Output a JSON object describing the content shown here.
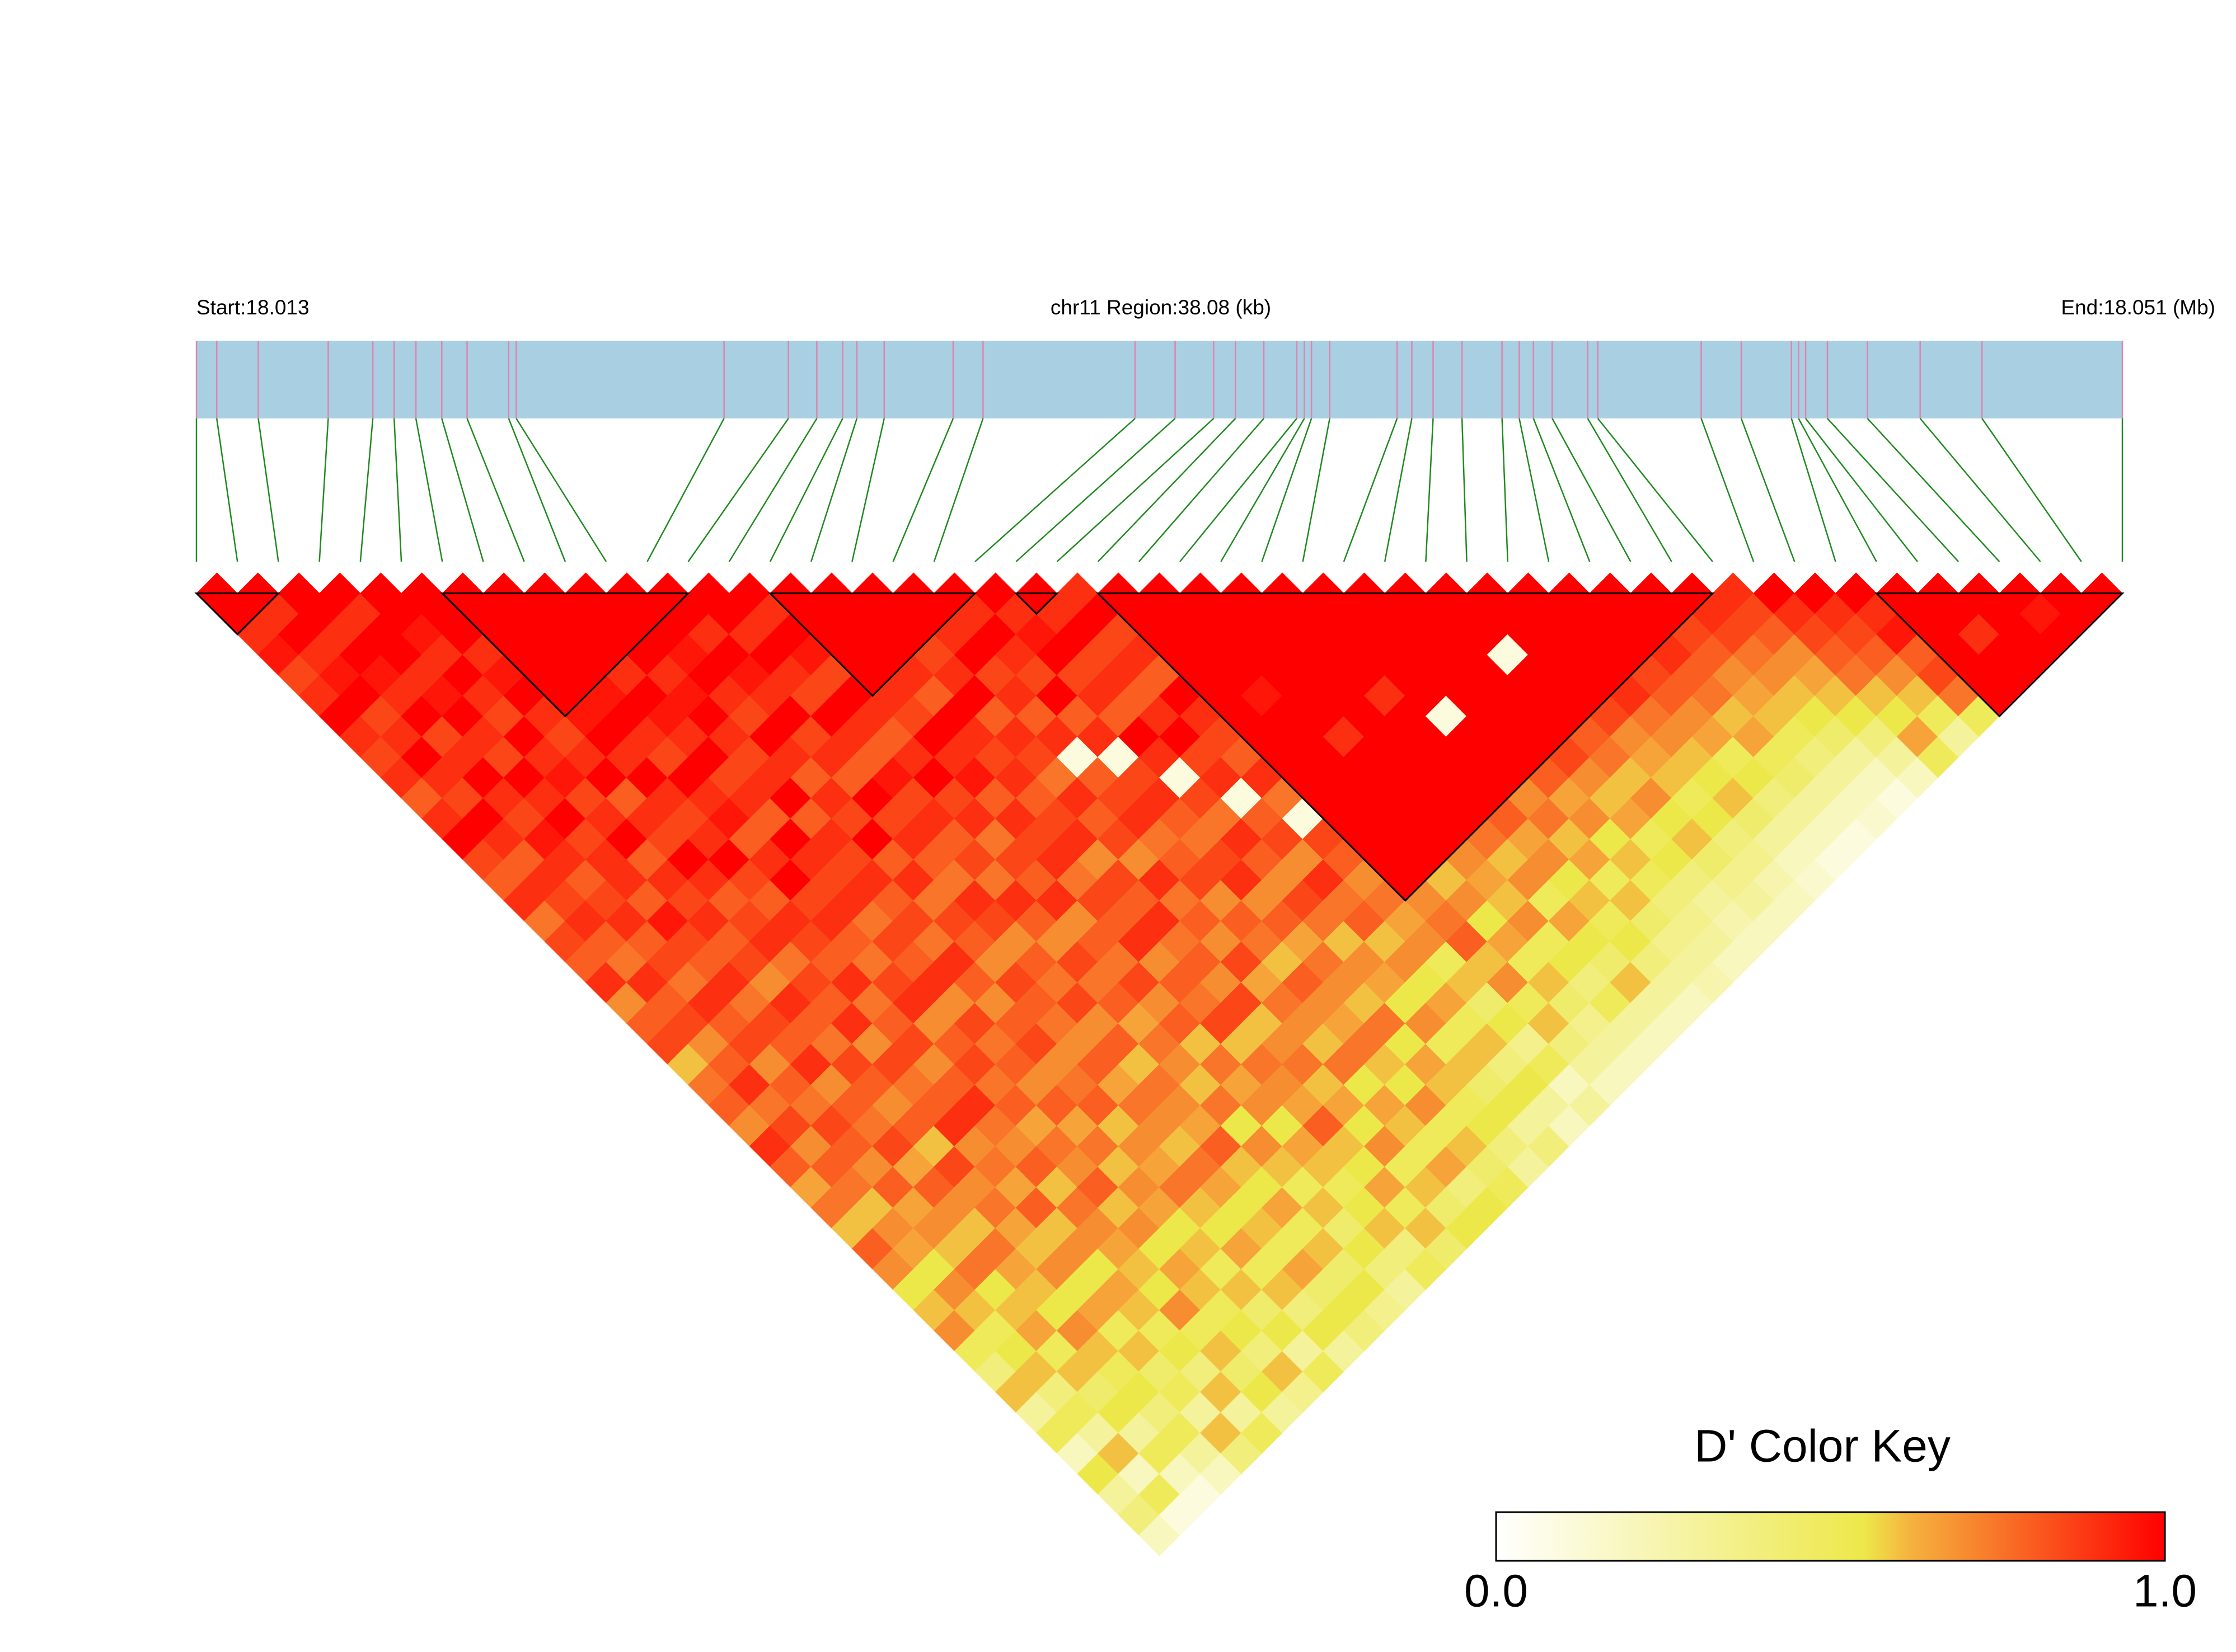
{
  "chart_data": {
    "type": "ld-heatmap",
    "start_label": "Start:18.013",
    "region_label": "chr11 Region:38.08 (kb)",
    "end_label": "End:18.051 (Mb)",
    "xlim": [
      18.013,
      18.051
    ],
    "bar_color": "#a8cfe2",
    "snp_tick_color": "#e083b0",
    "link_color": "#1f8a1f",
    "block_color": "#000000",
    "snp_positions": [
      18.013,
      18.0134,
      18.01422,
      18.0156,
      18.01648,
      18.0169,
      18.01733,
      18.01784,
      18.01834,
      18.01916,
      18.01931,
      18.02341,
      18.02468,
      18.02524,
      18.02575,
      18.02603,
      18.02657,
      18.02793,
      18.02852,
      18.03152,
      18.03231,
      18.03307,
      18.0335,
      18.03406,
      18.03471,
      18.03486,
      18.035,
      18.03536,
      18.03669,
      18.03698,
      18.0374,
      18.03797,
      18.03876,
      18.0391,
      18.03938,
      18.03975,
      18.04045,
      18.04065,
      18.04269,
      18.04348,
      18.04447,
      18.04461,
      18.04475,
      18.04518,
      18.04597,
      18.04701,
      18.04823,
      18.051
    ],
    "dprime": [
      [
        1,
        1,
        0.9,
        0.95,
        0.85,
        0.9,
        1,
        0.9,
        0.85,
        0.9,
        0.8,
        0.9,
        1,
        0.85,
        0.8,
        0.9,
        0.75,
        0.85,
        0.8,
        0.9,
        0.7,
        0.8,
        0.85,
        0.6,
        0.75,
        0.8,
        0.7,
        0.9,
        0.8,
        0.65,
        0.75,
        0.6,
        0.8,
        0.7,
        0.55,
        0.6,
        0.7,
        0.5,
        0.4,
        0.6,
        0.3,
        0.5,
        0.2,
        0.55,
        0.3,
        0.4,
        0.2
      ],
      [
        1,
        0.9,
        1,
        0.9,
        0.95,
        1,
        0.85,
        0.9,
        1,
        0.9,
        0.85,
        1,
        0.9,
        0.8,
        0.9,
        0.85,
        0.9,
        0.8,
        0.75,
        0.9,
        0.8,
        0.85,
        0.7,
        0.8,
        0.9,
        0.75,
        0.85,
        0.7,
        0.8,
        0.75,
        0.6,
        0.7,
        0.65,
        0.55,
        0.7,
        0.6,
        0.5,
        0.55,
        0.6,
        0.4,
        0.5,
        0.3,
        0.6,
        0.2,
        0.5,
        0.1
      ],
      [
        1,
        1,
        0.9,
        1,
        0.95,
        0.9,
        1,
        0.85,
        0.9,
        1,
        0.9,
        0.85,
        0.95,
        0.9,
        0.8,
        0.85,
        0.9,
        0.8,
        0.85,
        0.75,
        0.9,
        0.8,
        0.85,
        0.7,
        0.8,
        0.75,
        0.85,
        0.8,
        0.7,
        0.8,
        0.65,
        0.7,
        0.6,
        0.75,
        0.55,
        0.6,
        0.65,
        0.5,
        0.6,
        0.45,
        0.55,
        0.3,
        0.5,
        0.2,
        0.1
      ],
      [
        1,
        0.9,
        1,
        1,
        0.9,
        0.95,
        1,
        0.9,
        0.85,
        1,
        0.9,
        1,
        0.85,
        0.9,
        0.9,
        0.8,
        0.95,
        0.85,
        0.8,
        0.9,
        0.75,
        0.85,
        0.8,
        0.9,
        0.7,
        0.8,
        0.75,
        0.85,
        0.65,
        0.8,
        0.7,
        0.6,
        0.75,
        0.65,
        0.6,
        0.55,
        0.7,
        0.6,
        0.5,
        0.55,
        0.4,
        0.5,
        0.3,
        0.2
      ],
      [
        1,
        1,
        0.95,
        0.9,
        1,
        0.9,
        0.85,
        1,
        0.9,
        0.95,
        0.85,
        0.9,
        1,
        0.8,
        0.9,
        0.85,
        0.9,
        0.8,
        0.85,
        0.7,
        0.9,
        0.8,
        0.75,
        0.85,
        0.8,
        0.7,
        0.8,
        0.6,
        0.85,
        0.7,
        0.75,
        0.65,
        0.6,
        0.7,
        0.55,
        0.65,
        0.5,
        0.6,
        0.45,
        0.5,
        0.3,
        0.6,
        0.4
      ],
      [
        1,
        1,
        1,
        0.9,
        0.95,
        1,
        0.9,
        0.85,
        0.9,
        1,
        0.8,
        0.9,
        0.85,
        1,
        0.9,
        0.8,
        0.85,
        0.9,
        0.75,
        0.85,
        0.8,
        0.9,
        0.7,
        0.85,
        0.75,
        0.8,
        0.9,
        0.7,
        0.75,
        0.65,
        0.8,
        0.6,
        0.7,
        0.55,
        0.65,
        0.6,
        0.5,
        0.55,
        0.4,
        0.6,
        0.3,
        0.5
      ],
      [
        1,
        1,
        1,
        1,
        1,
        1,
        0.95,
        1,
        0.9,
        1,
        0.9,
        0.85,
        0.9,
        1,
        0.85,
        0.8,
        0.9,
        0.85,
        0.8,
        0.9,
        0.75,
        0.8,
        0.85,
        0.7,
        0.8,
        0.9,
        0.75,
        0.7,
        0.8,
        0.6,
        0.75,
        0.7,
        0.65,
        0.6,
        0.55,
        0.7,
        0.5,
        0.6,
        0.45,
        0.55,
        0.3
      ],
      [
        1,
        1,
        1,
        1,
        1,
        0.95,
        1,
        0.9,
        0.85,
        1,
        0.9,
        0.95,
        0.8,
        0.9,
        1,
        0.85,
        0.9,
        0.8,
        0.75,
        0.85,
        0.9,
        0.7,
        0.8,
        0.85,
        0.75,
        0.8,
        0.65,
        0.75,
        0.7,
        0.8,
        0.6,
        0.7,
        0.55,
        0.65,
        0.6,
        0.5,
        0.55,
        0.4,
        0.6,
        0.35
      ],
      [
        1,
        1,
        1,
        1,
        0.9,
        1,
        0.95,
        0.9,
        1,
        0.85,
        0.9,
        0.8,
        1,
        0.9,
        0.85,
        0.9,
        0.75,
        0.85,
        0.8,
        0.9,
        0.7,
        0.85,
        0.75,
        0.8,
        0.7,
        0.8,
        0.65,
        0.75,
        0.6,
        0.7,
        0.65,
        0.55,
        0.6,
        0.5,
        0.6,
        0.45,
        0.55,
        0.3,
        0.5
      ],
      [
        1,
        1,
        1,
        1,
        0.9,
        0.95,
        1,
        0.9,
        0.85,
        0.9,
        1,
        0.8,
        0.9,
        0.85,
        0.9,
        0.8,
        0.85,
        0.75,
        0.9,
        0.8,
        0.7,
        0.8,
        0.85,
        0.7,
        0.75,
        0.8,
        0.6,
        0.7,
        0.65,
        0.75,
        0.6,
        0.55,
        0.65,
        0.5,
        0.6,
        0.4,
        0.55,
        0.3
      ],
      [
        1,
        1,
        1,
        0.95,
        1,
        0.9,
        0.85,
        1,
        0.9,
        0.8,
        0.9,
        0.85,
        1,
        0.8,
        0.9,
        0.75,
        0.85,
        0.8,
        0.7,
        0.85,
        0.8,
        0.75,
        0.7,
        0.8,
        0.65,
        0.75,
        0.7,
        0.6,
        0.75,
        0.65,
        0.55,
        0.6,
        0.5,
        0.65,
        0.45,
        0.55,
        0.4
      ],
      [
        1,
        1,
        0.9,
        1,
        0.95,
        0.9,
        1,
        0.85,
        0.9,
        0.8,
        1,
        0.85,
        0.9,
        0.8,
        0.75,
        0.9,
        0.85,
        0.7,
        0.8,
        0.75,
        0.85,
        0.7,
        0.8,
        0.6,
        0.75,
        0.7,
        0.65,
        0.8,
        0.6,
        0.55,
        0.65,
        0.5,
        0.6,
        0.45,
        0.55,
        0.35
      ],
      [
        1,
        1,
        0.9,
        1,
        0.9,
        0.85,
        1,
        0.9,
        0.8,
        0.95,
        0.85,
        0.9,
        0.8,
        0.85,
        0.75,
        0.9,
        0.8,
        0.7,
        0.85,
        0.75,
        0.8,
        0.65,
        0.75,
        0.7,
        0.6,
        0.75,
        0.55,
        0.7,
        0.6,
        0.5,
        0.6,
        0.45,
        0.55,
        0.4,
        0.3
      ],
      [
        1,
        0.9,
        1,
        0.95,
        0.85,
        1,
        0.9,
        0.8,
        0.9,
        1,
        0.85,
        0.9,
        0.75,
        0.85,
        0.8,
        0.9,
        0.7,
        0.8,
        0.75,
        0.85,
        0.7,
        0.8,
        0.6,
        0.75,
        0.65,
        0.7,
        0.55,
        0.65,
        0.6,
        0.5,
        0.55,
        0.6,
        0.4,
        0.5
      ],
      [
        1,
        1,
        1,
        1,
        1,
        0.9,
        0.85,
        1,
        0.9,
        0.95,
        0.8,
        0.9,
        0.85,
        0.9,
        0.75,
        0.85,
        0.8,
        0.9,
        0.7,
        0.8,
        0.75,
        0.85,
        0.6,
        0.75,
        0.7,
        0.65,
        0.8,
        0.6,
        0.55,
        0.65,
        0.5,
        0.6,
        0.45
      ],
      [
        1,
        1,
        1,
        1,
        0.9,
        0.8,
        1,
        0.9,
        0.85,
        0.9,
        0.8,
        0.85,
        0.9,
        0.7,
        0.85,
        0.8,
        0.9,
        0.75,
        0.8,
        0.7,
        0.85,
        0.6,
        0.7,
        0.75,
        0.6,
        0.65,
        0.55,
        0.7,
        0.5,
        0.6,
        0.45,
        0.55
      ],
      [
        1,
        1,
        1,
        0.85,
        0.9,
        1,
        0.8,
        0.9,
        0.85,
        0.75,
        0.9,
        0.8,
        0.85,
        0.7,
        0.9,
        0.75,
        0.8,
        0.7,
        0.85,
        0.65,
        0.75,
        0.7,
        0.6,
        0.75,
        0.55,
        0.65,
        0.6,
        0.5,
        0.65,
        0.4,
        0.55
      ],
      [
        1,
        1,
        0.9,
        1,
        0.85,
        0.9,
        0.8,
        0.9,
        0.1,
        0.8,
        0.85,
        0.9,
        0.75,
        0.8,
        0.85,
        0.7,
        0.8,
        0.75,
        0.6,
        0.8,
        0.7,
        0.65,
        0.75,
        0.6,
        0.55,
        0.7,
        0.5,
        0.6,
        0.45,
        0.5
      ],
      [
        1,
        0.9,
        1,
        0.9,
        0.85,
        1,
        0.8,
        0.9,
        0.1,
        0.85,
        0.9,
        0.8,
        0.75,
        0.85,
        0.9,
        0.7,
        0.8,
        0.65,
        0.75,
        0.7,
        0.6,
        0.75,
        0.55,
        0.65,
        0.6,
        0.5,
        0.55,
        0.4,
        0.3
      ],
      [
        1,
        0.9,
        0.95,
        1,
        0.85,
        0.9,
        0.8,
        1,
        0.9,
        0.1,
        0.85,
        0.75,
        0.9,
        0.8,
        0.7,
        0.85,
        0.75,
        0.6,
        0.7,
        0.65,
        0.55,
        0.7,
        0.5,
        0.6,
        0.45,
        0.55,
        0.3,
        0.4
      ],
      [
        1,
        0.9,
        1,
        0.85,
        0.9,
        0.8,
        0.9,
        1,
        0.85,
        0.9,
        0.1,
        0.8,
        0.85,
        0.7,
        0.9,
        0.75,
        0.8,
        0.6,
        0.7,
        0.55,
        0.65,
        0.5,
        0.6,
        0.4,
        0.55,
        0.3,
        0.2
      ],
      [
        0.9,
        1,
        0.85,
        0.9,
        0.8,
        1,
        0.9,
        0.85,
        0.8,
        0.9,
        0.75,
        0.1,
        0.85,
        0.8,
        0.7,
        0.75,
        0.65,
        0.7,
        0.5,
        0.6,
        0.45,
        0.55,
        0.35,
        0.5,
        0.2,
        0.3
      ],
      [
        1,
        1,
        1,
        1,
        1,
        1,
        1,
        1,
        1,
        1,
        1,
        1,
        1,
        1,
        1,
        0.7,
        0.75,
        0.8,
        0.6,
        0.7,
        0.5,
        0.6,
        0.4,
        0.3,
        0.2
      ],
      [
        1,
        1,
        1,
        1,
        1,
        0.95,
        1,
        1,
        1,
        1,
        1,
        1,
        1,
        1,
        0.6,
        0.7,
        0.55,
        0.65,
        0.5,
        0.6,
        0.45,
        0.35,
        0.3,
        0.2
      ],
      [
        1,
        1,
        1,
        1,
        1,
        1,
        1,
        0.9,
        1,
        1,
        1,
        1,
        1,
        0.7,
        0.65,
        0.6,
        0.7,
        0.5,
        0.55,
        0.4,
        0.5,
        0.3,
        0.2
      ],
      [
        1,
        1,
        1,
        1,
        1,
        1,
        1,
        1,
        1,
        1,
        1,
        1,
        0.75,
        0.6,
        0.7,
        0.5,
        0.65,
        0.55,
        0.45,
        0.6,
        0.3,
        0.2
      ],
      [
        1,
        1,
        1,
        1,
        1,
        0.9,
        1,
        1,
        1,
        1,
        1,
        0.8,
        0.65,
        0.7,
        0.55,
        0.6,
        0.5,
        0.55,
        0.4,
        0.3,
        0.2
      ],
      [
        1,
        1,
        1,
        1,
        1,
        1,
        0.1,
        1,
        1,
        1,
        0.7,
        0.75,
        0.6,
        0.65,
        0.5,
        0.6,
        0.45,
        0.35,
        0.3,
        0.25
      ],
      [
        1,
        1,
        1,
        1,
        1,
        1,
        1,
        1,
        1,
        0.8,
        0.65,
        0.7,
        0.55,
        0.6,
        0.5,
        0.4,
        0.35,
        0.3,
        0.2
      ],
      [
        1,
        1,
        1,
        1,
        1,
        1,
        1,
        1,
        0.85,
        0.7,
        0.6,
        0.65,
        0.5,
        0.55,
        0.4,
        0.3,
        0.25,
        0.2
      ],
      [
        1,
        1,
        1,
        0.1,
        1,
        1,
        1,
        0.8,
        0.75,
        0.6,
        0.7,
        0.55,
        0.6,
        0.45,
        0.35,
        0.3,
        0.2
      ],
      [
        1,
        1,
        1,
        1,
        1,
        1,
        0.85,
        0.7,
        0.65,
        0.6,
        0.5,
        0.55,
        0.4,
        0.35,
        0.25,
        0.2
      ],
      [
        1,
        1,
        1,
        1,
        1,
        0.9,
        0.75,
        0.7,
        0.6,
        0.55,
        0.6,
        0.45,
        0.3,
        0.2,
        0.15
      ],
      [
        1,
        1,
        1,
        1,
        0.85,
        0.8,
        0.7,
        0.65,
        0.5,
        0.55,
        0.4,
        0.3,
        0.2,
        0.1
      ],
      [
        1,
        1,
        1,
        0.9,
        0.8,
        0.75,
        0.6,
        0.65,
        0.5,
        0.45,
        0.3,
        0.2,
        0.1
      ],
      [
        1,
        1,
        0.85,
        0.8,
        0.7,
        0.65,
        0.6,
        0.5,
        0.4,
        0.3,
        0.2,
        0.15
      ],
      [
        1,
        0.9,
        0.85,
        0.75,
        0.7,
        0.6,
        0.55,
        0.45,
        0.3,
        0.2,
        0.1
      ],
      [
        0.9,
        0.85,
        0.8,
        0.7,
        0.65,
        0.6,
        0.55,
        0.4,
        0.3,
        0.2
      ],
      [
        1,
        0.9,
        0.85,
        0.8,
        0.75,
        0.6,
        0.55,
        0.65,
        0.5
      ],
      [
        1,
        0.9,
        0.85,
        0.8,
        0.7,
        0.6,
        0.5,
        0.3
      ],
      [
        1,
        0.9,
        0.95,
        0.8,
        0.85,
        0.75,
        0.5
      ],
      [
        1,
        1,
        1,
        1,
        1,
        1
      ],
      [
        1,
        1,
        0.9,
        1,
        1
      ],
      [
        1,
        1,
        1,
        1
      ],
      [
        1,
        0.95,
        1
      ],
      [
        1,
        1
      ],
      [
        1
      ]
    ],
    "blocks": [
      [
        0,
        2
      ],
      [
        6,
        12
      ],
      [
        14,
        19
      ],
      [
        20,
        21
      ],
      [
        22,
        37
      ],
      [
        41,
        47
      ]
    ],
    "colorscale": [
      [
        0,
        "#ffffff"
      ],
      [
        0.55,
        "#ede84a"
      ],
      [
        0.62,
        "#f5b23e"
      ],
      [
        1,
        "#ff0000"
      ]
    ],
    "color_key": {
      "title": "D' Color Key",
      "lim": [
        0,
        1
      ],
      "ticks": [
        {
          "value": 0,
          "label": "0.0"
        },
        {
          "value": 1,
          "label": "1.0"
        }
      ]
    }
  }
}
